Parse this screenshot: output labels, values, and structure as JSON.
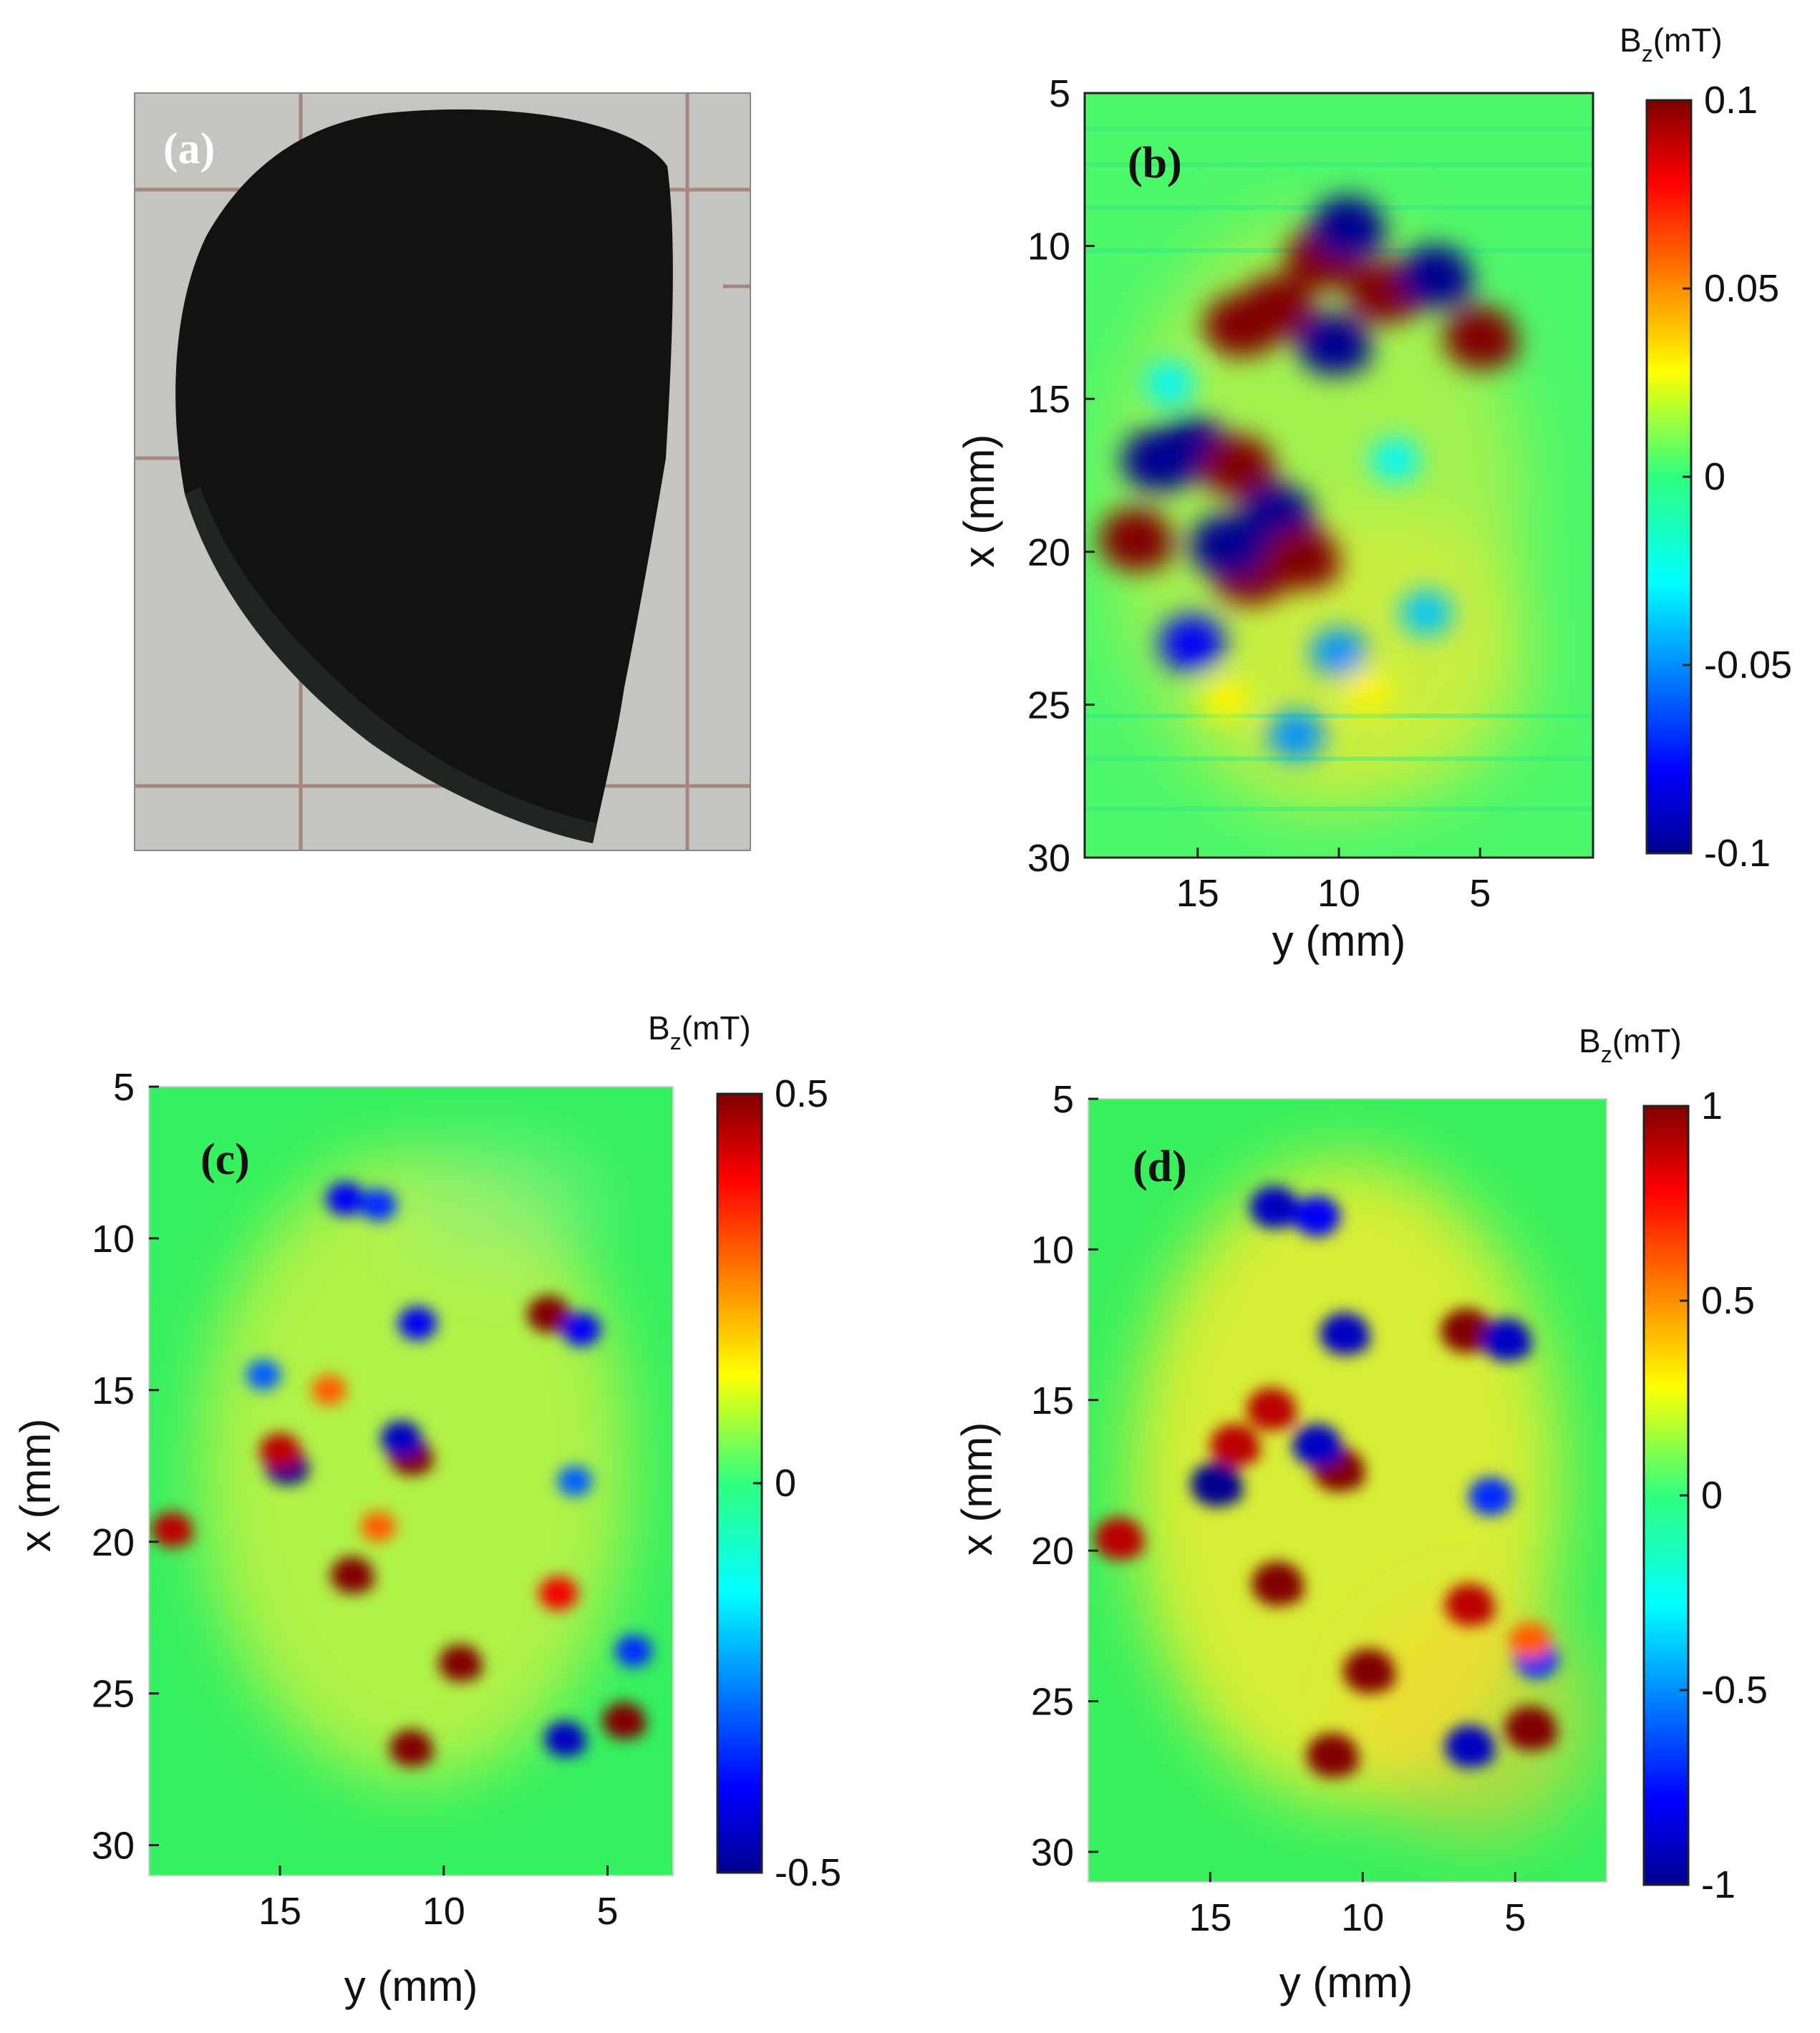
{
  "chart_data": [
    {
      "panel": "a",
      "type": "image",
      "label": "(a)",
      "colors": {
        "object": "#101311",
        "background": "#c4c5c0",
        "grout": "#9a706b"
      }
    },
    {
      "panel": "b",
      "type": "heatmap",
      "label": "(b)",
      "xlabel": "y (mm)",
      "ylabel": "x (mm)",
      "xlim": [
        19,
        1
      ],
      "ylim": [
        30,
        5
      ],
      "xticks": [
        "15",
        "10",
        "5"
      ],
      "xtick_values": [
        15,
        10,
        5
      ],
      "yticks": [
        "5",
        "10",
        "15",
        "20",
        "25",
        "30"
      ],
      "ytick_values": [
        5,
        10,
        15,
        20,
        25,
        30
      ],
      "colorbar": {
        "label_main": "B",
        "label_sub": "z",
        "label_unit": "(mT)",
        "min": -0.1,
        "max": 0.1,
        "ticks": [
          "0.1",
          "0.05",
          "0",
          "-0.05",
          "-0.1"
        ],
        "tick_values": [
          0.1,
          0.05,
          0,
          -0.05,
          -0.1
        ]
      },
      "background_value": 0.01,
      "features": [
        {
          "y": 12.2,
          "x": 12.0,
          "v": 0.1
        },
        {
          "y": 13.5,
          "x": 12.6,
          "v": 0.1
        },
        {
          "y": 10.6,
          "x": 10.4,
          "v": 0.1
        },
        {
          "y": 9.7,
          "x": 9.4,
          "v": -0.1
        },
        {
          "y": 8.4,
          "x": 11.5,
          "v": 0.1
        },
        {
          "y": 6.6,
          "x": 11.0,
          "v": -0.1
        },
        {
          "y": 5.0,
          "x": 13.0,
          "v": 0.1
        },
        {
          "y": 10.2,
          "x": 13.2,
          "v": -0.1
        },
        {
          "y": 16.4,
          "x": 17.0,
          "v": -0.1
        },
        {
          "y": 15.2,
          "x": 16.6,
          "v": -0.1
        },
        {
          "y": 13.6,
          "x": 17.2,
          "v": 0.1
        },
        {
          "y": 12.2,
          "x": 18.8,
          "v": -0.1
        },
        {
          "y": 11.3,
          "x": 20.2,
          "v": 0.1
        },
        {
          "y": 13.2,
          "x": 20.7,
          "v": 0.1
        },
        {
          "y": 14.0,
          "x": 19.8,
          "v": -0.1
        },
        {
          "y": 15.2,
          "x": 23.0,
          "v": -0.08
        },
        {
          "y": 10.0,
          "x": 23.3,
          "v": -0.05
        },
        {
          "y": 6.9,
          "x": 22.0,
          "v": -0.04
        },
        {
          "y": 11.5,
          "x": 26.0,
          "v": -0.05
        },
        {
          "y": 14.0,
          "x": 24.8,
          "v": 0.03
        },
        {
          "y": 9.0,
          "x": 24.5,
          "v": 0.03
        },
        {
          "y": 17.2,
          "x": 19.6,
          "v": 0.1
        },
        {
          "y": 16.0,
          "x": 14.5,
          "v": -0.03
        },
        {
          "y": 8.0,
          "x": 17.0,
          "v": -0.03
        }
      ]
    },
    {
      "panel": "c",
      "type": "heatmap",
      "label": "(c)",
      "xlabel": "y (mm)",
      "ylabel": "x (mm)",
      "xlim": [
        19,
        3
      ],
      "ylim": [
        31,
        5
      ],
      "xticks": [
        "15",
        "10",
        "5"
      ],
      "xtick_values": [
        15,
        10,
        5
      ],
      "yticks": [
        "5",
        "10",
        "15",
        "20",
        "25",
        "30"
      ],
      "ytick_values": [
        5,
        10,
        15,
        20,
        25,
        30
      ],
      "colorbar": {
        "label_main": "B",
        "label_sub": "z",
        "label_unit": "(mT)",
        "min": -0.5,
        "max": 0.5,
        "ticks": [
          "0.5",
          "0",
          "-0.5"
        ],
        "tick_values": [
          0.5,
          0,
          -0.5
        ]
      },
      "background_value": 0.05,
      "features": [
        {
          "y": 13.0,
          "x": 8.7,
          "v": -0.4
        },
        {
          "y": 12.0,
          "x": 8.9,
          "v": -0.35
        },
        {
          "y": 6.8,
          "x": 12.5,
          "v": 0.5
        },
        {
          "y": 5.8,
          "x": 13.0,
          "v": -0.4
        },
        {
          "y": 10.8,
          "x": 12.8,
          "v": -0.4
        },
        {
          "y": 14.8,
          "x": 17.5,
          "v": -0.5
        },
        {
          "y": 15.0,
          "x": 17.0,
          "v": 0.45
        },
        {
          "y": 11.0,
          "x": 17.2,
          "v": 0.5
        },
        {
          "y": 11.3,
          "x": 16.6,
          "v": -0.45
        },
        {
          "y": 12.8,
          "x": 21.1,
          "v": 0.5
        },
        {
          "y": 18.3,
          "x": 19.6,
          "v": 0.45
        },
        {
          "y": 9.5,
          "x": 24.0,
          "v": 0.5
        },
        {
          "y": 11.0,
          "x": 26.8,
          "v": 0.5
        },
        {
          "y": 6.3,
          "x": 26.5,
          "v": -0.45
        },
        {
          "y": 4.5,
          "x": 25.9,
          "v": 0.5
        },
        {
          "y": 4.2,
          "x": 23.6,
          "v": -0.35
        },
        {
          "y": 6.5,
          "x": 21.7,
          "v": 0.4
        },
        {
          "y": 15.5,
          "x": 14.5,
          "v": -0.3
        },
        {
          "y": 13.5,
          "x": 15.0,
          "v": 0.3
        },
        {
          "y": 12.0,
          "x": 19.5,
          "v": 0.3
        },
        {
          "y": 6.0,
          "x": 18.0,
          "v": -0.3
        }
      ]
    },
    {
      "panel": "d",
      "type": "heatmap",
      "label": "(d)",
      "xlabel": "y (mm)",
      "ylabel": "x (mm)",
      "xlim": [
        19,
        2
      ],
      "ylim": [
        31,
        5
      ],
      "xticks": [
        "15",
        "10",
        "5"
      ],
      "xtick_values": [
        15,
        10,
        5
      ],
      "yticks": [
        "5",
        "10",
        "15",
        "20",
        "25",
        "30"
      ],
      "ytick_values": [
        5,
        10,
        15,
        20,
        25,
        30
      ],
      "colorbar": {
        "label_main": "B",
        "label_sub": "z",
        "label_unit": "(mT)",
        "min": -1,
        "max": 1,
        "ticks": [
          "1",
          "0.5",
          "0",
          "-0.5",
          "-1"
        ],
        "tick_values": [
          1,
          0.5,
          0,
          -0.5,
          -1
        ]
      },
      "background_value": 0.15,
      "features": [
        {
          "y": 12.9,
          "x": 8.6,
          "v": -0.9
        },
        {
          "y": 11.5,
          "x": 8.9,
          "v": -0.8
        },
        {
          "y": 6.6,
          "x": 12.7,
          "v": 1.0
        },
        {
          "y": 5.3,
          "x": 13.0,
          "v": -0.9
        },
        {
          "y": 10.6,
          "x": 12.8,
          "v": -0.9
        },
        {
          "y": 14.8,
          "x": 17.8,
          "v": -1.0
        },
        {
          "y": 14.2,
          "x": 16.5,
          "v": 0.9
        },
        {
          "y": 10.8,
          "x": 17.3,
          "v": 1.0
        },
        {
          "y": 11.5,
          "x": 16.5,
          "v": -0.9
        },
        {
          "y": 13.0,
          "x": 15.3,
          "v": 0.9
        },
        {
          "y": 12.8,
          "x": 21.1,
          "v": 1.0
        },
        {
          "y": 18.0,
          "x": 19.6,
          "v": 0.9
        },
        {
          "y": 9.8,
          "x": 24.0,
          "v": 1.0
        },
        {
          "y": 11.0,
          "x": 26.8,
          "v": 1.0
        },
        {
          "y": 6.5,
          "x": 26.5,
          "v": -0.9
        },
        {
          "y": 4.5,
          "x": 25.9,
          "v": 1.0
        },
        {
          "y": 4.3,
          "x": 23.6,
          "v": -0.7
        },
        {
          "y": 6.5,
          "x": 21.8,
          "v": 0.9
        },
        {
          "y": 5.8,
          "x": 18.2,
          "v": -0.7
        },
        {
          "y": 4.5,
          "x": 23.0,
          "v": 0.6
        }
      ]
    }
  ]
}
